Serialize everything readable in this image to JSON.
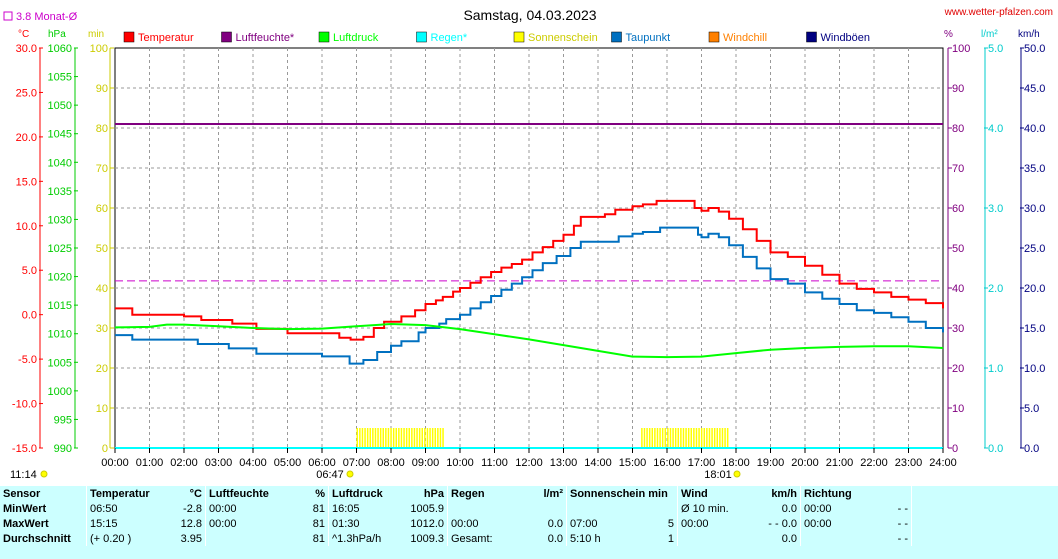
{
  "header": {
    "title": "Samstag, 04.03.2023",
    "brand": "www.wetter-pfalzen.com",
    "month_avg": "3.8 Monat-Ø",
    "unit_celsius": "°C",
    "unit_hpa": "hPa",
    "unit_min": "min",
    "unit_percent": "%",
    "unit_lm2": "l/m²",
    "unit_kmh": "km/h",
    "sunrise": "06:47",
    "sunset": "18:01",
    "time_left": "11:14"
  },
  "legend": [
    {
      "label": "Temperatur",
      "color": "#ff0000"
    },
    {
      "label": "Luftfeuchte*",
      "color": "#800080"
    },
    {
      "label": "Luftdruck",
      "color": "#00ff00"
    },
    {
      "label": "Regen*",
      "color": "#00ffff"
    },
    {
      "label": "Sonnenschein",
      "color": "#ffff00"
    },
    {
      "label": "Taupunkt",
      "color": "#0070c0"
    },
    {
      "label": "Windchill",
      "color": "#ff8000"
    },
    {
      "label": "Windböen",
      "color": "#000080"
    }
  ],
  "chart_data": {
    "type": "line",
    "x_labels": [
      "00:00",
      "01:00",
      "02:00",
      "03:00",
      "04:00",
      "05:00",
      "06:00",
      "07:00",
      "08:00",
      "09:00",
      "10:00",
      "11:00",
      "12:00",
      "13:00",
      "14:00",
      "15:00",
      "16:00",
      "17:00",
      "18:00",
      "19:00",
      "20:00",
      "21:00",
      "22:00",
      "23:00",
      "24:00"
    ],
    "axes": {
      "temp_celsius": {
        "range": [
          -15,
          30
        ],
        "ticks": [
          "30.0",
          "25.0",
          "20.0",
          "15.0",
          "10.0",
          "5.0",
          "0.0",
          "-5.0",
          "-10.0",
          "-15.0"
        ]
      },
      "pressure_hpa": {
        "range": [
          990,
          1060
        ],
        "ticks": [
          "1060",
          "1055",
          "1050",
          "1045",
          "1040",
          "1035",
          "1030",
          "1025",
          "1020",
          "1015",
          "1010",
          "1005",
          "1000",
          "995",
          "990"
        ]
      },
      "sunshine_min": {
        "range": [
          0,
          100
        ],
        "ticks": [
          "100",
          "90",
          "80",
          "70",
          "60",
          "50",
          "40",
          "30",
          "20",
          "10",
          "0"
        ]
      },
      "humidity_percent": {
        "range": [
          0,
          100
        ],
        "ticks": [
          "100",
          "90",
          "80",
          "70",
          "60",
          "50",
          "40",
          "30",
          "20",
          "10",
          "0"
        ]
      },
      "rain_lm2": {
        "range": [
          0,
          5
        ],
        "ticks": [
          "5.0",
          "4.0",
          "3.0",
          "2.0",
          "1.0",
          "0.0"
        ]
      },
      "wind_kmh": {
        "range": [
          0,
          50
        ],
        "ticks": [
          "50.0",
          "45.0",
          "40.0",
          "35.0",
          "30.0",
          "25.0",
          "20.0",
          "15.0",
          "10.0",
          "5.0",
          "0.0"
        ]
      }
    },
    "month_avg_temp": 3.8,
    "series": [
      {
        "name": "Temperatur",
        "color": "#ff0000",
        "axis": "temp_celsius",
        "points": [
          [
            0,
            0.7
          ],
          [
            0.5,
            0.0
          ],
          [
            2,
            -0.2
          ],
          [
            2.5,
            -0.6
          ],
          [
            3.3,
            -0.6
          ],
          [
            3.4,
            -1.0
          ],
          [
            4.1,
            -1.6
          ],
          [
            5,
            -2.1
          ],
          [
            6.5,
            -2.6
          ],
          [
            6.83,
            -2.8
          ],
          [
            7.2,
            -2.5
          ],
          [
            7.5,
            -1.5
          ],
          [
            7.8,
            -0.8
          ],
          [
            8.3,
            -0.2
          ],
          [
            8.7,
            0.5
          ],
          [
            9,
            1.2
          ],
          [
            9.3,
            1.6
          ],
          [
            9.5,
            2.0
          ],
          [
            9.8,
            2.6
          ],
          [
            10,
            3.0
          ],
          [
            10.3,
            3.6
          ],
          [
            10.6,
            4.2
          ],
          [
            10.9,
            4.8
          ],
          [
            11.2,
            5.3
          ],
          [
            11.5,
            5.7
          ],
          [
            11.8,
            6.2
          ],
          [
            12.1,
            7.0
          ],
          [
            12.4,
            7.6
          ],
          [
            12.7,
            8.3
          ],
          [
            13,
            9.0
          ],
          [
            13.3,
            10.0
          ],
          [
            13.5,
            11.0
          ],
          [
            14.2,
            11.3
          ],
          [
            14.5,
            11.8
          ],
          [
            15,
            12.2
          ],
          [
            15.3,
            12.4
          ],
          [
            15.7,
            12.8
          ],
          [
            16.5,
            12.8
          ],
          [
            16.8,
            12.0
          ],
          [
            17,
            11.7
          ],
          [
            17.2,
            12.0
          ],
          [
            17.5,
            11.6
          ],
          [
            17.8,
            10.8
          ],
          [
            18.2,
            9.6
          ],
          [
            18.6,
            8.3
          ],
          [
            19,
            7.0
          ],
          [
            19.5,
            6.5
          ],
          [
            20,
            5.5
          ],
          [
            20.5,
            4.5
          ],
          [
            21,
            3.5
          ],
          [
            21.5,
            2.9
          ],
          [
            22,
            2.5
          ],
          [
            22.5,
            2.0
          ],
          [
            23,
            1.7
          ],
          [
            23.5,
            1.3
          ],
          [
            24,
            0.7
          ]
        ]
      },
      {
        "name": "Taupunkt",
        "color": "#0070c0",
        "axis": "temp_celsius",
        "points": [
          [
            0,
            -2.3
          ],
          [
            0.5,
            -2.8
          ],
          [
            2.2,
            -2.8
          ],
          [
            2.4,
            -3.3
          ],
          [
            3.2,
            -3.3
          ],
          [
            3.3,
            -3.8
          ],
          [
            4,
            -3.8
          ],
          [
            4.1,
            -4.4
          ],
          [
            6,
            -4.7
          ],
          [
            6.8,
            -5.5
          ],
          [
            7.2,
            -5.1
          ],
          [
            7.6,
            -4.2
          ],
          [
            8,
            -3.5
          ],
          [
            8.3,
            -3.0
          ],
          [
            8.8,
            -2.0
          ],
          [
            9,
            -1.5
          ],
          [
            9.4,
            -1.0
          ],
          [
            9.6,
            -0.5
          ],
          [
            10,
            0.0
          ],
          [
            10.3,
            0.7
          ],
          [
            10.6,
            1.4
          ],
          [
            10.9,
            2.1
          ],
          [
            11.2,
            2.8
          ],
          [
            11.5,
            3.5
          ],
          [
            11.8,
            4.2
          ],
          [
            12.1,
            5.0
          ],
          [
            12.4,
            5.8
          ],
          [
            12.8,
            6.6
          ],
          [
            13.2,
            7.5
          ],
          [
            13.5,
            8.2
          ],
          [
            14.3,
            8.2
          ],
          [
            14.6,
            8.8
          ],
          [
            15,
            9.1
          ],
          [
            15.3,
            9.3
          ],
          [
            15.8,
            9.8
          ],
          [
            16.6,
            9.8
          ],
          [
            16.9,
            9.0
          ],
          [
            17,
            8.7
          ],
          [
            17.2,
            9.1
          ],
          [
            17.5,
            8.7
          ],
          [
            17.8,
            7.8
          ],
          [
            18.2,
            6.5
          ],
          [
            18.6,
            5.2
          ],
          [
            19,
            4.0
          ],
          [
            19.5,
            3.5
          ],
          [
            20,
            2.5
          ],
          [
            20.5,
            1.8
          ],
          [
            21,
            1.2
          ],
          [
            21.5,
            0.5
          ],
          [
            22,
            0.2
          ],
          [
            22.5,
            -0.3
          ],
          [
            23,
            -0.8
          ],
          [
            23.5,
            -1.5
          ],
          [
            24,
            -2.0
          ]
        ]
      },
      {
        "name": "Luftdruck",
        "color": "#00ff00",
        "axis": "pressure_hpa",
        "points": [
          [
            0,
            1011.1
          ],
          [
            1,
            1011.2
          ],
          [
            1.5,
            1011.6
          ],
          [
            2,
            1011.6
          ],
          [
            3,
            1011.3
          ],
          [
            4,
            1011.0
          ],
          [
            5,
            1010.8
          ],
          [
            6,
            1010.9
          ],
          [
            7,
            1011.3
          ],
          [
            8,
            1011.7
          ],
          [
            9,
            1011.5
          ],
          [
            10,
            1010.8
          ],
          [
            11,
            1009.9
          ],
          [
            12,
            1009.0
          ],
          [
            13,
            1008.0
          ],
          [
            14,
            1007.0
          ],
          [
            15,
            1006.0
          ],
          [
            16,
            1005.9
          ],
          [
            17,
            1006.0
          ],
          [
            18,
            1006.6
          ],
          [
            19,
            1007.2
          ],
          [
            20,
            1007.5
          ],
          [
            21,
            1007.7
          ],
          [
            22,
            1007.8
          ],
          [
            23,
            1007.8
          ],
          [
            24,
            1007.5
          ]
        ]
      },
      {
        "name": "Luftfeuchte*",
        "color": "#800080",
        "axis": "humidity_percent",
        "points": [
          [
            0,
            81
          ],
          [
            24,
            81
          ]
        ]
      },
      {
        "name": "Regen*",
        "color": "#00ffff",
        "axis": "rain_lm2",
        "points": [
          [
            0,
            0
          ],
          [
            24,
            0
          ]
        ]
      }
    ],
    "sunshine": [
      [
        7.0,
        9.5,
        5
      ],
      [
        15.25,
        17.8,
        5
      ]
    ]
  },
  "stats": {
    "headers": {
      "sensor": "Sensor",
      "temperatur": "Temperatur",
      "temp_unit": "°C",
      "luftfeuchte": "Luftfeuchte",
      "hum_unit": "%",
      "luftdruck": "Luftdruck",
      "press_unit": "hPa",
      "regen": "Regen",
      "rain_unit": "l/m²",
      "sonne": "Sonnenschein min",
      "wind": "Wind",
      "wind_unit": "km/h",
      "richtung": "Richtung"
    },
    "rows": [
      {
        "label": "MinWert",
        "temp_time": "06:50",
        "temp": "-2.8",
        "hum_time": "00:00",
        "hum": "81",
        "press_time": "16:05",
        "press": "1005.9",
        "rain_time": "",
        "rain": "",
        "sun_time": "",
        "sun": "",
        "wind_time": "Ø 10 min.",
        "wind": "0.0",
        "dir_time": "00:00",
        "dir": "- -"
      },
      {
        "label": "MaxWert",
        "temp_time": "15:15",
        "temp": "12.8",
        "hum_time": "00:00",
        "hum": "81",
        "press_time": "01:30",
        "press": "1012.0",
        "rain_time": "00:00",
        "rain": "0.0",
        "sun_time": "07:00",
        "sun": "5",
        "wind_time": "00:00",
        "wind": "- - 0.0",
        "dir_time": "00:00",
        "dir": "- -"
      },
      {
        "label": "Durchschnitt",
        "temp_time": "(+ 0.20 )",
        "temp": "3.95",
        "hum_time": "",
        "hum": "81",
        "press_time": "^1.3hPa/h",
        "press": "1009.3",
        "rain_time": "Gesamt:",
        "rain": "0.0",
        "sun_time": "5:10 h",
        "sun": "1",
        "wind_time": "",
        "wind": "0.0",
        "dir_time": "",
        "dir": "- -"
      }
    ]
  }
}
